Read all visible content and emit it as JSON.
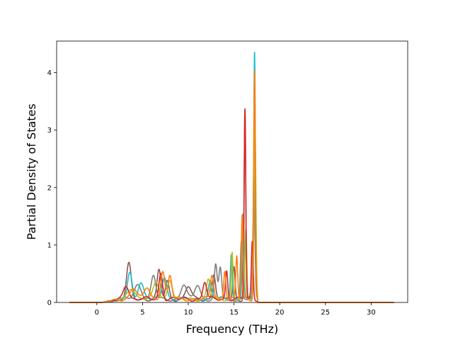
{
  "chart_data": {
    "type": "line",
    "title": "",
    "xlabel": "Frequency (THz)",
    "ylabel": "Partial Density of States",
    "xlim": [
      -4.4,
      34.0
    ],
    "ylim": [
      0,
      4.55
    ],
    "xticks": [
      0,
      5,
      10,
      15,
      20,
      25,
      30
    ],
    "yticks": [
      0,
      1,
      2,
      3,
      4
    ],
    "xtick_labels": [
      "0",
      "5",
      "10",
      "15",
      "20",
      "25",
      "30"
    ],
    "ytick_labels": [
      "0",
      "1",
      "2",
      "3",
      "4"
    ],
    "grid": false,
    "legend": "none",
    "x_range_of_data": [
      -3.0,
      32.5
    ],
    "series": [
      {
        "color": "#8c564b",
        "peaks": [
          [
            3.5,
            0.6,
            0.25
          ],
          [
            6.8,
            0.5,
            0.2
          ],
          [
            7.7,
            0.3,
            0.2
          ],
          [
            10.0,
            0.22,
            0.3
          ],
          [
            12.8,
            0.45,
            0.18
          ],
          [
            15.0,
            0.55,
            0.12
          ],
          [
            16.2,
            3.32,
            0.09
          ],
          [
            17.2,
            2.0,
            0.1
          ]
        ]
      },
      {
        "color": "#7f7f7f",
        "peaks": [
          [
            4.5,
            0.25,
            0.4
          ],
          [
            6.2,
            0.4,
            0.25
          ],
          [
            9.5,
            0.25,
            0.3
          ],
          [
            11.0,
            0.25,
            0.3
          ],
          [
            13.0,
            0.58,
            0.15
          ],
          [
            13.5,
            0.55,
            0.15
          ],
          [
            15.8,
            1.0,
            0.1
          ],
          [
            17.2,
            2.5,
            0.1
          ]
        ]
      },
      {
        "color": "#17becf",
        "peaks": [
          [
            3.6,
            0.45,
            0.25
          ],
          [
            4.8,
            0.3,
            0.3
          ],
          [
            7.4,
            0.4,
            0.25
          ],
          [
            12.4,
            0.3,
            0.2
          ],
          [
            14.7,
            0.8,
            0.1
          ],
          [
            16.0,
            1.5,
            0.1
          ],
          [
            17.25,
            4.33,
            0.09
          ]
        ]
      },
      {
        "color": "#bcbd22",
        "peaks": [
          [
            3.8,
            0.2,
            0.4
          ],
          [
            6.5,
            0.3,
            0.3
          ],
          [
            8.0,
            0.35,
            0.25
          ],
          [
            12.2,
            0.35,
            0.2
          ],
          [
            14.8,
            0.82,
            0.1
          ],
          [
            16.3,
            1.2,
            0.1
          ],
          [
            17.3,
            3.0,
            0.1
          ]
        ]
      },
      {
        "color": "#d62728",
        "peaks": [
          [
            3.2,
            0.25,
            0.3
          ],
          [
            7.0,
            0.45,
            0.2
          ],
          [
            11.8,
            0.3,
            0.2
          ],
          [
            14.2,
            0.5,
            0.12
          ],
          [
            16.2,
            3.3,
            0.09
          ],
          [
            17.0,
            1.0,
            0.1
          ]
        ]
      },
      {
        "color": "#ff7f0e",
        "peaks": [
          [
            4.0,
            0.2,
            0.35
          ],
          [
            5.5,
            0.2,
            0.3
          ],
          [
            7.2,
            0.5,
            0.22
          ],
          [
            8.0,
            0.4,
            0.2
          ],
          [
            12.6,
            0.42,
            0.18
          ],
          [
            14.0,
            0.52,
            0.12
          ],
          [
            15.3,
            0.75,
            0.1
          ],
          [
            15.9,
            1.45,
            0.1
          ],
          [
            17.25,
            4.02,
            0.09
          ]
        ]
      }
    ]
  }
}
